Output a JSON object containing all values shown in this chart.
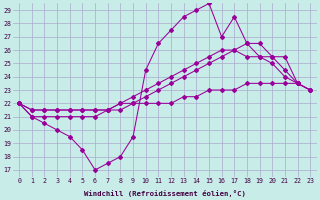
{
  "xlabel": "Windchill (Refroidissement éolien,°C)",
  "bg_color": "#c8ece8",
  "line_color": "#990099",
  "grid_color": "#aaaacc",
  "xmin": -0.5,
  "xmax": 23.5,
  "ymin": 16.5,
  "ymax": 29.5,
  "xticks": [
    0,
    1,
    2,
    3,
    4,
    5,
    6,
    7,
    8,
    9,
    10,
    11,
    12,
    13,
    14,
    15,
    16,
    17,
    18,
    19,
    20,
    21,
    22,
    23
  ],
  "yticks": [
    17,
    18,
    19,
    20,
    21,
    22,
    23,
    24,
    25,
    26,
    27,
    28,
    29
  ],
  "series": [
    [
      22.0,
      21.0,
      20.5,
      20.0,
      19.5,
      18.5,
      17.0,
      17.5,
      18.0,
      19.5,
      24.5,
      26.5,
      27.5,
      28.5,
      29.0,
      29.5,
      27.0,
      28.5,
      26.5,
      25.5,
      25.0,
      24.0,
      23.5,
      null
    ],
    [
      22.0,
      21.5,
      21.5,
      21.5,
      21.5,
      21.5,
      21.5,
      21.5,
      22.0,
      22.0,
      22.5,
      23.0,
      23.5,
      24.0,
      24.5,
      25.0,
      25.5,
      26.0,
      26.5,
      26.5,
      25.5,
      24.5,
      23.5,
      23.0
    ],
    [
      22.0,
      21.5,
      21.5,
      21.5,
      21.5,
      21.5,
      21.5,
      21.5,
      22.0,
      22.5,
      23.0,
      23.5,
      24.0,
      24.5,
      25.0,
      25.5,
      26.0,
      26.0,
      25.5,
      25.5,
      25.5,
      25.5,
      23.5,
      23.0
    ],
    [
      22.0,
      21.0,
      21.0,
      21.0,
      21.0,
      21.0,
      21.0,
      21.5,
      21.5,
      22.0,
      22.0,
      22.0,
      22.0,
      22.5,
      22.5,
      23.0,
      23.0,
      23.0,
      23.5,
      23.5,
      23.5,
      23.5,
      23.5,
      23.0
    ]
  ]
}
